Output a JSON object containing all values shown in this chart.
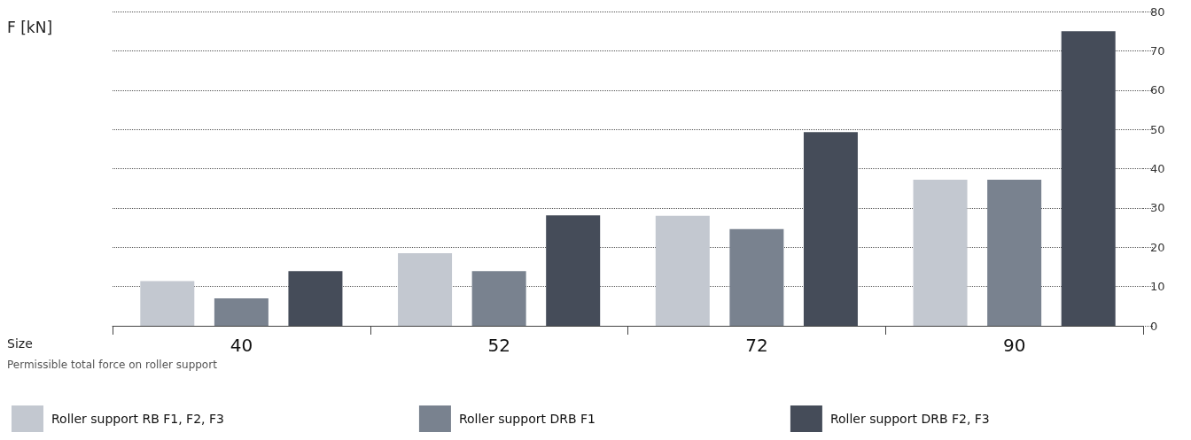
{
  "chart_data": {
    "type": "bar",
    "ylabel": "F [kN]",
    "annotations": [
      "Size",
      "Permissible total force on roller support"
    ],
    "categories": [
      "40",
      "52",
      "72",
      "90"
    ],
    "series": [
      {
        "name": "Roller support RB F1, F2, F3",
        "color": "#c3c8d0",
        "values": [
          11.4,
          18.5,
          28.0,
          37.2
        ]
      },
      {
        "name": "Roller support DRB F1",
        "color": "#79828f",
        "values": [
          7.0,
          13.9,
          24.6,
          37.2
        ]
      },
      {
        "name": "Roller support DRB F2, F3",
        "color": "#454c59",
        "values": [
          13.9,
          28.1,
          49.3,
          75
        ]
      }
    ],
    "ylim": [
      0,
      80
    ],
    "yticks": [
      0,
      10,
      20,
      30,
      40,
      50,
      60,
      70,
      80
    ],
    "grid": "y",
    "legend": "bottom"
  }
}
